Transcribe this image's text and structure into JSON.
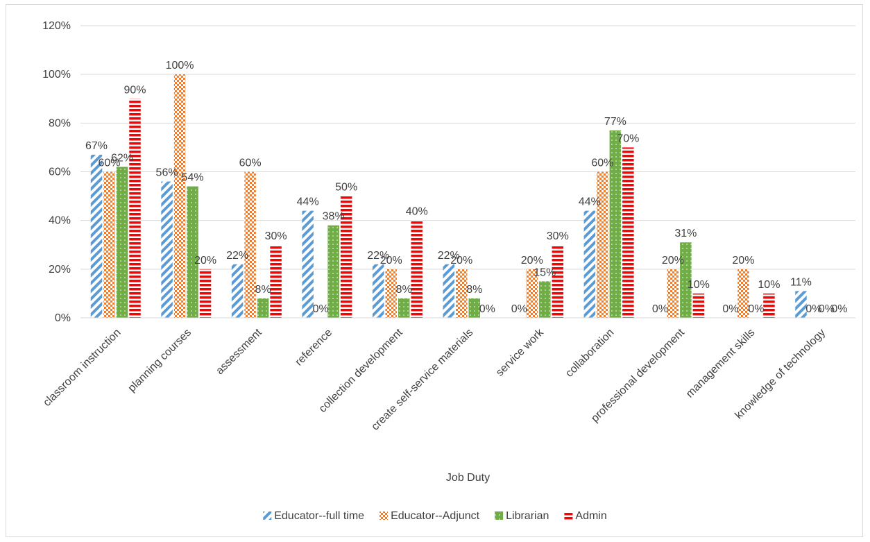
{
  "chart_data": {
    "type": "bar",
    "title": "",
    "xlabel": "Job Duty",
    "ylabel": "",
    "ylim": [
      0,
      1.2
    ],
    "y_ticks": [
      "0%",
      "20%",
      "40%",
      "60%",
      "80%",
      "100%",
      "120%"
    ],
    "grid": true,
    "legend_position": "bottom",
    "categories": [
      "classroom instruction",
      "planning courses",
      "assessment",
      "reference",
      "collection development",
      "create self-service materials",
      "service work",
      "collaboration",
      "professional development",
      "management skills",
      "knowledge of technology"
    ],
    "series": [
      {
        "name": "Educator--full time",
        "color": "#5b9bd5",
        "pattern": "diagonal-stripes",
        "values": [
          0.67,
          0.56,
          0.22,
          0.44,
          0.22,
          0.22,
          null,
          0.44,
          null,
          null,
          0.11
        ],
        "labels": [
          "67%",
          "56%",
          "22%",
          "44%",
          "22%",
          "22%",
          "0%",
          "44%",
          "0%",
          "0%",
          "11%"
        ]
      },
      {
        "name": "Educator--Adjunct",
        "color": "#ed7d31",
        "pattern": "checker",
        "values": [
          0.6,
          1.0,
          0.6,
          null,
          0.2,
          0.2,
          0.2,
          0.6,
          0.2,
          0.2,
          null
        ],
        "labels": [
          "60%",
          "100%",
          "60%",
          "0%",
          "20%",
          "20%",
          "20%",
          "60%",
          "20%",
          "20%",
          "0%"
        ]
      },
      {
        "name": "Librarian",
        "color": "#70ad47",
        "pattern": "dots",
        "values": [
          0.62,
          0.54,
          0.08,
          0.38,
          0.08,
          0.08,
          0.15,
          0.77,
          0.31,
          null,
          null
        ],
        "labels": [
          "62%",
          "54%",
          "8%",
          "38%",
          "8%",
          "8%",
          "15%",
          "77%",
          "31%",
          "0%",
          "0%"
        ]
      },
      {
        "name": "Admin",
        "color": "#ff0000",
        "pattern": "horizontal-stripes",
        "values": [
          0.9,
          0.2,
          0.3,
          0.5,
          0.4,
          null,
          0.3,
          0.7,
          0.1,
          0.1,
          null
        ],
        "labels": [
          "90%",
          "20%",
          "30%",
          "50%",
          "40%",
          "0%",
          "30%",
          "70%",
          "10%",
          "10%",
          "0%"
        ]
      }
    ]
  }
}
